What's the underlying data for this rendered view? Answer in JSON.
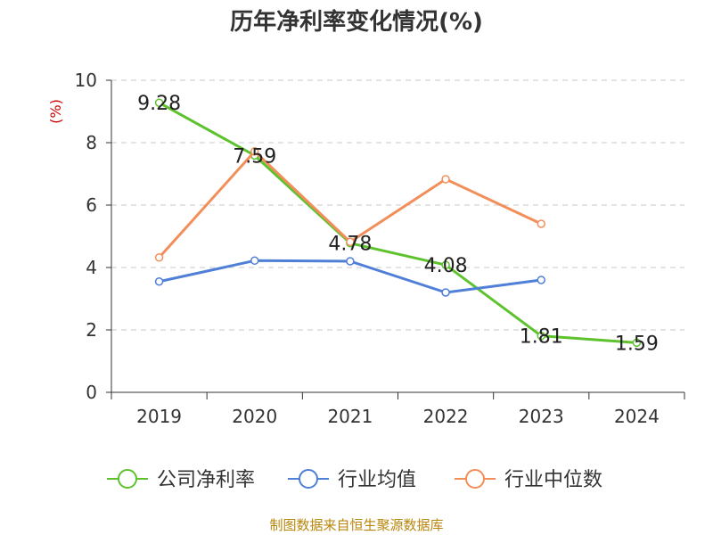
{
  "chart_data": {
    "type": "line",
    "title": "历年净利率变化情况(%)",
    "ylabel": "(%)",
    "categories": [
      "2019",
      "2020",
      "2021",
      "2022",
      "2023",
      "2024"
    ],
    "ylim": [
      0,
      10
    ],
    "yticks": [
      0,
      2,
      4,
      6,
      8,
      10
    ],
    "grid": true,
    "legend_position": "bottom",
    "series": [
      {
        "name": "公司净利率",
        "color": "#5ec22e",
        "values": [
          9.28,
          7.59,
          4.78,
          4.08,
          1.81,
          1.59
        ],
        "show_labels": true
      },
      {
        "name": "行业均值",
        "color": "#4f7fd6",
        "values": [
          3.55,
          4.22,
          4.2,
          3.2,
          3.6,
          null
        ],
        "show_labels": false
      },
      {
        "name": "行业中位数",
        "color": "#f28e59",
        "values": [
          4.32,
          7.72,
          4.82,
          6.83,
          5.4,
          null
        ],
        "show_labels": false
      }
    ],
    "data_labels": [
      "9.28",
      "7.59",
      "4.78",
      "4.08",
      "1.81",
      "1.59"
    ]
  },
  "footer": "制图数据来自恒生聚源数据库"
}
